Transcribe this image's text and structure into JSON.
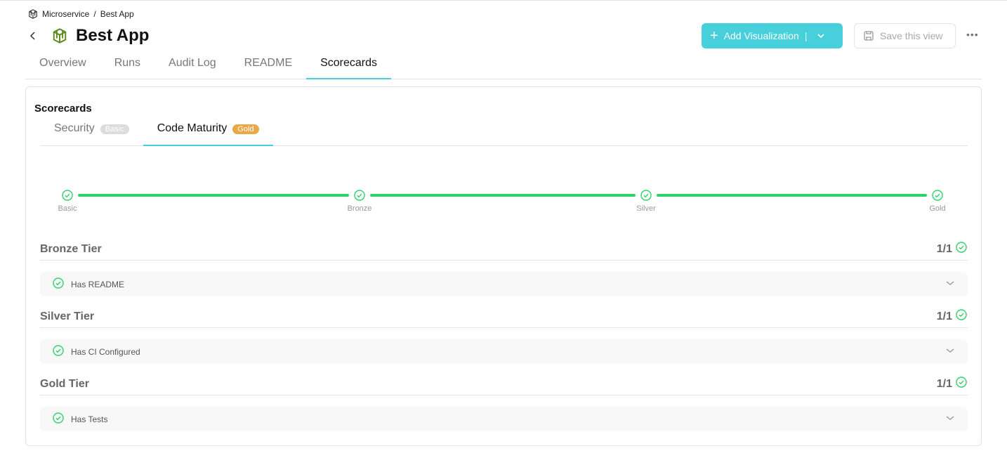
{
  "breadcrumb": {
    "parent": "Microservice",
    "current": "Best App"
  },
  "header": {
    "title": "Best App",
    "add_label": "Add Visualization",
    "save_label": "Save this view"
  },
  "tabs": [
    {
      "label": "Overview"
    },
    {
      "label": "Runs"
    },
    {
      "label": "Audit Log"
    },
    {
      "label": "README"
    },
    {
      "label": "Scorecards",
      "active": true
    }
  ],
  "scorecards": {
    "title": "Scorecards",
    "tabs": [
      {
        "label": "Security",
        "badge": "Basic",
        "badge_color": "#dcdcdc"
      },
      {
        "label": "Code Maturity",
        "badge": "Gold",
        "badge_color": "#e9a94b",
        "active": true
      }
    ],
    "levels": [
      "Basic",
      "Bronze",
      "Silver",
      "Gold"
    ],
    "progress_complete": true,
    "tiers": [
      {
        "name": "Bronze Tier",
        "score": "1/1",
        "rules": [
          "Has README"
        ]
      },
      {
        "name": "Silver Tier",
        "score": "1/1",
        "rules": [
          "Has CI Configured"
        ]
      },
      {
        "name": "Gold Tier",
        "score": "1/1",
        "rules": [
          "Has Tests"
        ]
      }
    ]
  },
  "colors": {
    "accent": "#47d0dc",
    "success": "#2dd36a",
    "gold": "#e9a94b"
  }
}
